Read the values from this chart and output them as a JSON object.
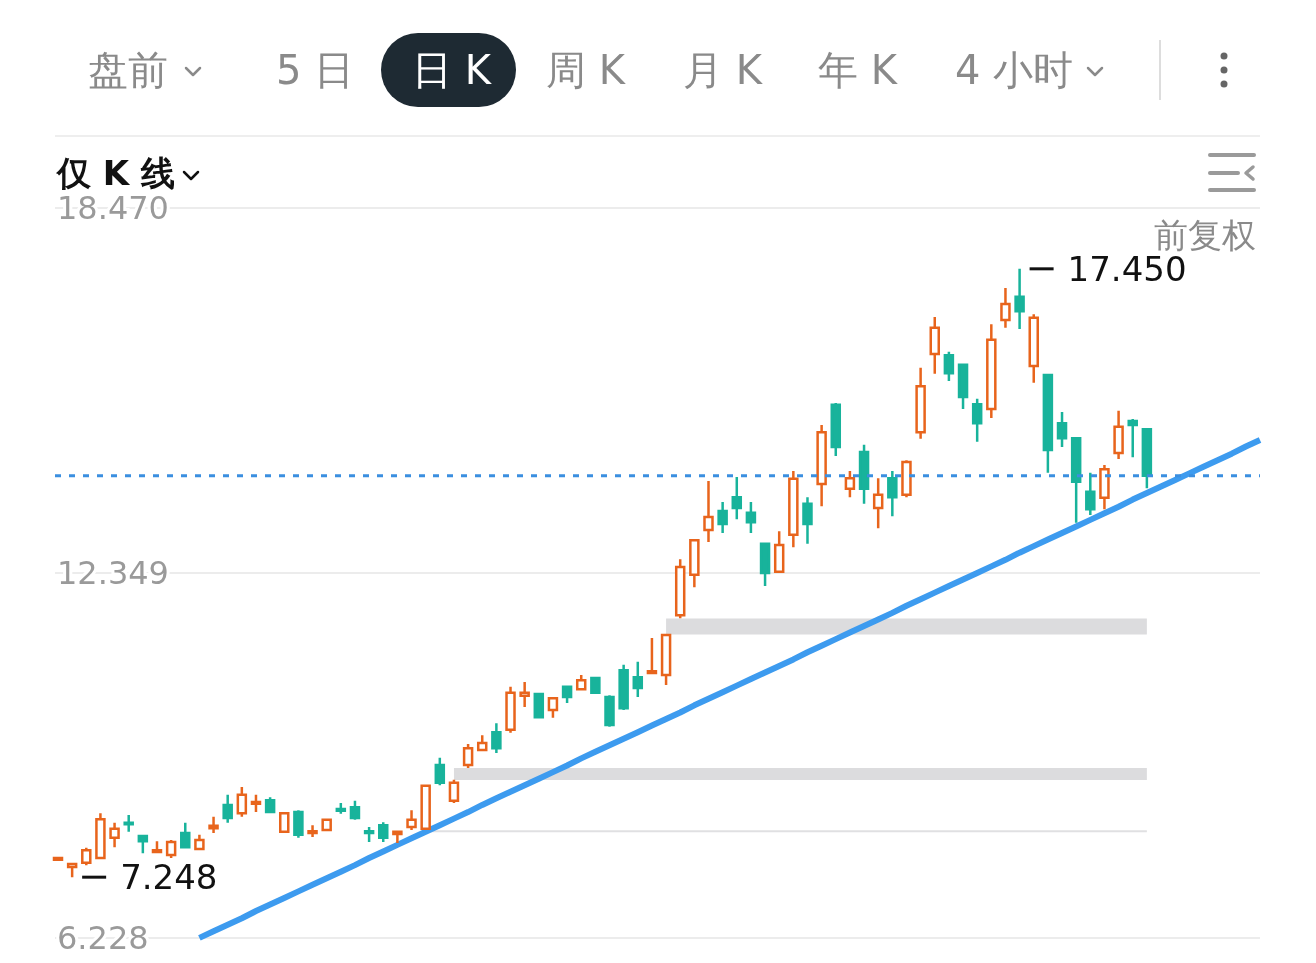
{
  "chart_data": {
    "type": "candlestick",
    "categories": [
      null,
      null,
      null,
      null,
      null,
      null,
      null,
      null,
      null,
      null,
      null,
      null,
      null,
      null,
      null,
      null,
      null,
      null,
      null,
      null,
      null,
      null,
      null,
      null,
      null,
      null,
      null,
      null,
      null,
      null,
      null,
      null,
      null,
      null,
      null,
      null,
      null,
      null,
      null,
      null,
      null,
      null,
      null,
      null,
      null,
      null,
      null,
      null,
      null,
      null,
      null,
      null,
      null,
      null,
      null,
      null,
      null,
      null,
      null,
      null,
      null,
      null,
      null,
      null,
      null,
      null,
      null,
      null,
      null,
      null,
      null,
      null,
      null,
      null,
      null,
      null,
      null,
      null,
      null,
      null,
      null,
      null,
      null,
      null,
      null,
      null
    ],
    "ohlc": [
      [
        7.54,
        7.59,
        7.52,
        7.57
      ],
      [
        7.42,
        7.47,
        7.248,
        7.47
      ],
      [
        7.49,
        7.74,
        7.45,
        7.7
      ],
      [
        7.57,
        8.32,
        7.55,
        8.22
      ],
      [
        7.91,
        8.16,
        7.75,
        8.06
      ],
      [
        8.16,
        8.29,
        8.01,
        8.14
      ],
      [
        7.94,
        7.94,
        7.65,
        7.85
      ],
      [
        7.67,
        7.85,
        7.65,
        7.7
      ],
      [
        7.62,
        7.87,
        7.57,
        7.84
      ],
      [
        7.99,
        8.16,
        7.74,
        7.75
      ],
      [
        7.72,
        7.96,
        7.7,
        7.87
      ],
      [
        8.07,
        8.26,
        7.99,
        8.11
      ],
      [
        8.46,
        8.63,
        8.16,
        8.24
      ],
      [
        8.32,
        8.76,
        8.26,
        8.63
      ],
      [
        8.48,
        8.63,
        8.34,
        8.51
      ],
      [
        8.54,
        8.59,
        8.32,
        8.34
      ],
      [
        8.01,
        8.34,
        7.99,
        8.32
      ],
      [
        8.34,
        8.37,
        7.91,
        7.96
      ],
      [
        7.99,
        8.12,
        7.92,
        8.02
      ],
      [
        8.04,
        8.22,
        8.02,
        8.21
      ],
      [
        8.39,
        8.49,
        8.31,
        8.36
      ],
      [
        8.42,
        8.53,
        8.21,
        8.24
      ],
      [
        8.02,
        8.09,
        7.84,
        7.99
      ],
      [
        8.12,
        8.17,
        7.84,
        7.91
      ],
      [
        7.97,
        8.01,
        7.82,
        8.01
      ],
      [
        8.09,
        8.37,
        8.04,
        8.21
      ],
      [
        8.06,
        8.78,
        8.04,
        8.78
      ],
      [
        9.13,
        9.25,
        8.79,
        8.83
      ],
      [
        8.53,
        8.88,
        8.49,
        8.83
      ],
      [
        9.13,
        9.48,
        9.08,
        9.41
      ],
      [
        9.38,
        9.63,
        9.36,
        9.5
      ],
      [
        9.68,
        9.83,
        9.33,
        9.41
      ],
      [
        9.72,
        10.44,
        9.67,
        10.34
      ],
      [
        10.29,
        10.52,
        10.1,
        10.34
      ],
      [
        10.32,
        10.32,
        9.92,
        9.93
      ],
      [
        10.05,
        10.27,
        9.92,
        10.25
      ],
      [
        10.44,
        10.44,
        10.17,
        10.27
      ],
      [
        10.4,
        10.64,
        10.39,
        10.55
      ],
      [
        10.59,
        10.6,
        10.34,
        10.34
      ],
      [
        10.27,
        10.3,
        9.77,
        9.8
      ],
      [
        10.72,
        10.81,
        10.05,
        10.08
      ],
      [
        10.6,
        10.86,
        10.27,
        10.42
      ],
      [
        10.67,
        11.26,
        10.67,
        10.7
      ],
      [
        10.64,
        11.31,
        10.47,
        11.31
      ],
      [
        11.64,
        12.58,
        11.59,
        12.45
      ],
      [
        12.32,
        12.9,
        12.11,
        12.9
      ],
      [
        13.07,
        13.89,
        12.87,
        13.29
      ],
      [
        13.39,
        13.54,
        13.02,
        13.17
      ],
      [
        13.62,
        13.96,
        13.25,
        13.44
      ],
      [
        13.36,
        13.54,
        13.02,
        13.2
      ],
      [
        12.84,
        12.85,
        12.13,
        12.35
      ],
      [
        12.37,
        13.05,
        12.35,
        12.82
      ],
      [
        12.99,
        14.06,
        12.78,
        13.93
      ],
      [
        13.51,
        13.62,
        12.84,
        13.17
      ],
      [
        13.84,
        14.83,
        13.47,
        14.71
      ],
      [
        15.17,
        15.2,
        14.31,
        14.46
      ],
      [
        13.76,
        14.06,
        13.62,
        13.94
      ],
      [
        14.38,
        14.5,
        13.51,
        13.76
      ],
      [
        13.44,
        13.94,
        13.1,
        13.66
      ],
      [
        13.94,
        14.06,
        13.3,
        13.62
      ],
      [
        13.66,
        14.24,
        13.62,
        14.21
      ],
      [
        14.71,
        15.79,
        14.6,
        15.48
      ],
      [
        16.02,
        16.64,
        15.69,
        16.46
      ],
      [
        16.0,
        16.06,
        15.57,
        15.7
      ],
      [
        15.84,
        15.84,
        15.1,
        15.3
      ],
      [
        15.18,
        15.27,
        14.55,
        14.86
      ],
      [
        15.1,
        16.52,
        14.95,
        16.26
      ],
      [
        16.59,
        17.13,
        16.46,
        16.86
      ],
      [
        16.98,
        17.45,
        16.44,
        16.74
      ],
      [
        15.82,
        16.69,
        15.54,
        16.63
      ],
      [
        15.67,
        15.67,
        14.03,
        14.41
      ],
      [
        14.86,
        15.05,
        14.46,
        14.61
      ],
      [
        14.61,
        14.61,
        13.19,
        13.88
      ],
      [
        13.71,
        14.03,
        13.32,
        13.42
      ],
      [
        13.61,
        14.16,
        13.42,
        14.09
      ],
      [
        14.36,
        15.07,
        14.26,
        14.8
      ],
      [
        14.9,
        14.93,
        14.29,
        14.83
      ],
      [
        14.76,
        14.76,
        13.77,
        13.98
      ],
      null,
      null,
      null,
      null,
      null,
      null,
      null,
      null
    ],
    "colors": [
      "#e8641c",
      "#e8641c",
      "#e8641c",
      "#e8641c",
      "#e8641c",
      "#18b39b",
      "#18b39b",
      "#e8641c",
      "#e8641c",
      "#18b39b",
      "#e8641c",
      "#e8641c",
      "#18b39b",
      "#e8641c",
      "#e8641c",
      "#18b39b",
      "#e8641c",
      "#18b39b",
      "#e8641c",
      "#e8641c",
      "#18b39b",
      "#18b39b",
      "#18b39b",
      "#18b39b",
      "#e8641c",
      "#e8641c",
      "#e8641c",
      "#18b39b",
      "#e8641c",
      "#e8641c",
      "#e8641c",
      "#18b39b",
      "#e8641c",
      "#e8641c",
      "#18b39b",
      "#e8641c",
      "#18b39b",
      "#e8641c",
      "#18b39b",
      "#18b39b",
      "#18b39b",
      "#18b39b",
      "#e8641c",
      "#e8641c",
      "#e8641c",
      "#e8641c",
      "#e8641c",
      "#18b39b",
      "#18b39b",
      "#18b39b",
      "#18b39b",
      "#e8641c",
      "#e8641c",
      "#18b39b",
      "#e8641c",
      "#18b39b",
      "#e8641c",
      "#18b39b",
      "#e8641c",
      "#18b39b",
      "#e8641c",
      "#e8641c",
      "#e8641c",
      "#18b39b",
      "#18b39b",
      "#18b39b",
      "#e8641c",
      "#e8641c",
      "#18b39b",
      "#e8641c",
      "#18b39b",
      "#18b39b",
      "#18b39b",
      "#18b39b",
      "#e8641c",
      "#e8641c",
      "#18b39b",
      "#18b39b",
      null,
      null,
      null,
      null,
      null,
      null,
      null,
      null
    ],
    "series": [
      {
        "type": "line",
        "color": "#e0e0e2",
        "values": [
          null,
          null,
          null,
          null,
          null,
          null,
          null,
          null,
          null,
          null,
          null,
          null,
          null,
          null,
          null,
          null,
          null,
          null,
          null,
          null,
          null,
          null,
          null,
          null,
          null,
          null,
          8.02,
          8.02,
          8.02,
          8.02,
          8.02,
          8.02,
          8.02,
          8.02,
          8.02,
          8.02,
          8.02,
          8.02,
          8.02,
          8.02,
          8.02,
          8.02,
          8.02,
          8.02,
          8.02,
          8.02,
          8.02,
          8.02,
          8.02,
          8.02,
          8.02,
          8.02,
          8.02,
          8.02,
          8.02,
          8.02,
          8.02,
          8.02,
          8.02,
          8.02,
          8.02,
          8.02,
          8.02,
          8.02,
          8.02,
          8.02,
          8.02,
          8.02,
          8.02,
          8.02,
          8.02,
          8.02,
          8.02,
          8.02,
          8.02,
          8.02,
          8.02,
          8.02,
          null,
          null,
          null,
          null,
          null,
          null,
          null,
          null
        ]
      },
      {
        "type": "line",
        "color": "#dcdcde",
        "values": [
          null,
          null,
          null,
          null,
          null,
          null,
          null,
          null,
          null,
          null,
          null,
          null,
          null,
          null,
          null,
          null,
          null,
          null,
          null,
          null,
          null,
          null,
          null,
          null,
          null,
          null,
          null,
          null,
          8.98,
          8.98,
          8.98,
          8.98,
          8.98,
          8.98,
          8.98,
          8.98,
          8.98,
          8.98,
          8.98,
          8.98,
          8.98,
          8.98,
          8.98,
          8.98,
          8.98,
          8.98,
          8.98,
          8.98,
          8.98,
          8.98,
          8.98,
          8.98,
          8.98,
          8.98,
          8.98,
          8.98,
          8.98,
          8.98,
          8.98,
          8.98,
          8.98,
          8.98,
          8.98,
          8.98,
          8.98,
          8.98,
          8.98,
          8.98,
          8.98,
          8.98,
          8.98,
          8.98,
          8.98,
          8.98,
          8.98,
          8.98,
          8.98,
          8.98,
          null,
          null,
          null,
          null,
          null,
          null,
          null,
          null
        ]
      },
      {
        "type": "line",
        "color": "#dcdcde",
        "values": [
          null,
          null,
          null,
          null,
          null,
          null,
          null,
          null,
          null,
          null,
          null,
          null,
          null,
          null,
          null,
          null,
          null,
          null,
          null,
          null,
          null,
          null,
          null,
          null,
          null,
          null,
          null,
          null,
          null,
          null,
          null,
          null,
          null,
          null,
          null,
          null,
          null,
          null,
          null,
          null,
          null,
          null,
          null,
          11.45,
          11.45,
          11.45,
          11.45,
          11.45,
          11.45,
          11.45,
          11.45,
          11.45,
          11.45,
          11.45,
          11.45,
          11.45,
          11.45,
          11.45,
          11.45,
          11.45,
          11.45,
          11.45,
          11.45,
          11.45,
          11.45,
          11.45,
          11.45,
          11.45,
          11.45,
          11.45,
          11.45,
          11.45,
          11.45,
          11.45,
          11.45,
          11.45,
          11.45,
          11.45,
          null,
          null,
          null,
          null,
          null,
          null,
          null,
          null
        ]
      },
      {
        "type": "line",
        "color": "#3d9bef",
        "values": [
          null,
          null,
          null,
          null,
          null,
          null,
          null,
          null,
          null,
          null,
          6.23,
          6.34,
          6.45,
          6.56,
          6.68,
          6.79,
          6.9,
          7.01,
          7.12,
          7.23,
          7.34,
          7.45,
          7.57,
          7.68,
          7.79,
          7.9,
          8.01,
          8.12,
          8.23,
          8.34,
          8.46,
          8.57,
          8.68,
          8.79,
          8.9,
          9.01,
          9.12,
          9.24,
          9.35,
          9.46,
          9.57,
          9.68,
          9.79,
          9.9,
          10.01,
          10.13,
          10.24,
          10.35,
          10.46,
          10.57,
          10.68,
          10.79,
          10.9,
          11.02,
          11.13,
          11.24,
          11.35,
          11.46,
          11.57,
          11.68,
          11.8,
          11.91,
          12.02,
          12.13,
          12.24,
          12.35,
          12.46,
          12.57,
          12.69,
          12.8,
          12.91,
          13.02,
          13.13,
          13.24,
          13.35,
          13.46,
          13.58,
          13.69,
          13.8,
          13.91,
          14.02,
          14.13,
          14.24,
          14.35,
          14.47,
          14.58
        ]
      }
    ],
    "ylim": [
      6.228,
      18.47
    ],
    "yticks": [
      {
        "value": 18.47,
        "label": "18.470"
      },
      12.349,
      6.228
    ],
    "tick_labels": "y",
    "ref_lines": [
      {
        "axis": "y",
        "value": 12.349,
        "color": "#e6e6e6"
      },
      {
        "axis": "y",
        "value": 13.98,
        "color": "#3b8fe0",
        "line_style": "dotted"
      }
    ],
    "annotations": [
      "盘前",
      "5 日",
      "日 K",
      "周 K",
      "月 K",
      "年 K",
      "4 小时",
      "仅 K 线",
      "前复权",
      "17.450",
      "7.248"
    ]
  }
}
